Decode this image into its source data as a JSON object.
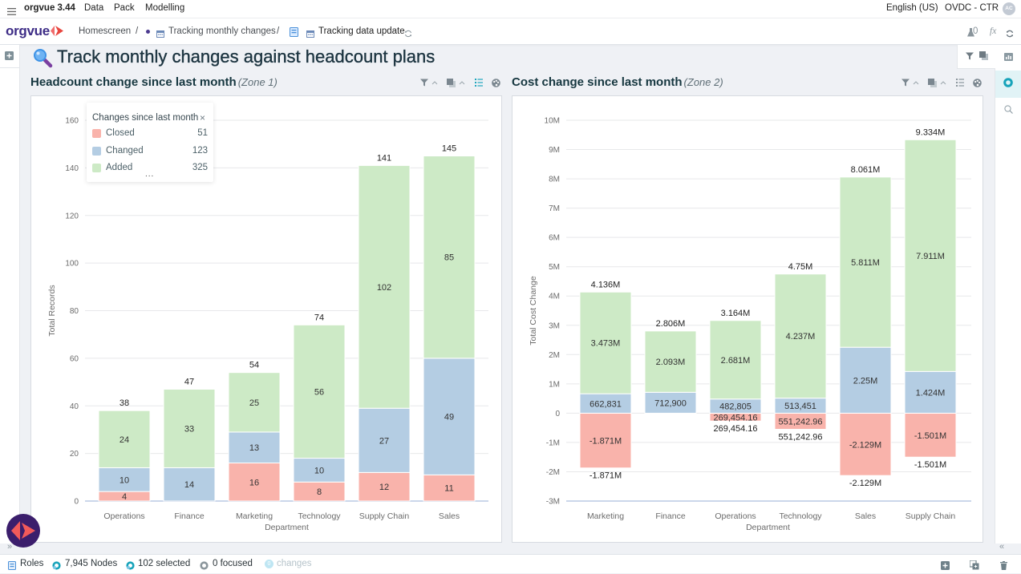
{
  "app": {
    "name": "orgvue 3.44",
    "menu": [
      {
        "label": "Data"
      },
      {
        "label": "Pack"
      },
      {
        "label": "Modelling"
      }
    ],
    "language": "English (US)",
    "tenant": "OVDC - CTR",
    "avatar_initials": "AC"
  },
  "breadcrumb": {
    "logo_text": "orgvue",
    "separator": "/",
    "items": [
      {
        "label": "Homescreen"
      },
      {
        "label": "Tracking monthly changes",
        "icon": "calendar-icon"
      },
      {
        "label": "Tracking data update",
        "icon": "calendar-icon"
      }
    ]
  },
  "header_tools": {
    "experiments_count": "0",
    "formula_label": "fx"
  },
  "page": {
    "title": "Track monthly changes against headcount plans",
    "title_icon": "magnifier-icon"
  },
  "colors": {
    "closed": "#f9b3ab",
    "changed": "#b4cde3",
    "added": "#cdeac6",
    "accent": "#19a7bd",
    "brand": "#3d2c86"
  },
  "chart_data": [
    {
      "type": "bar",
      "stacked": true,
      "title": "Headcount change since last month",
      "zone": "(Zone 1)",
      "xlabel": "Department",
      "ylabel": "Total Records",
      "ylim": [
        0,
        160
      ],
      "yticks": [
        0,
        20,
        40,
        60,
        80,
        100,
        120,
        140,
        160
      ],
      "ytick_labels": [
        "0",
        "20",
        "40",
        "60",
        "80",
        "100",
        "120",
        "140",
        "160"
      ],
      "grid": true,
      "categories": [
        "Operations",
        "Finance",
        "Marketing",
        "Technology",
        "Supply Chain",
        "Sales"
      ],
      "series": [
        {
          "name": "Closed",
          "color": "#f9b3ab",
          "values": [
            4,
            0,
            16,
            8,
            12,
            11
          ],
          "labels": [
            "4",
            "",
            "16",
            "8",
            "12",
            "11"
          ]
        },
        {
          "name": "Changed",
          "color": "#b4cde3",
          "values": [
            10,
            14,
            13,
            10,
            27,
            49
          ],
          "labels": [
            "10",
            "14",
            "13",
            "10",
            "27",
            "49"
          ]
        },
        {
          "name": "Added",
          "color": "#cdeac6",
          "values": [
            24,
            33,
            25,
            56,
            102,
            85
          ],
          "labels": [
            "24",
            "33",
            "25",
            "56",
            "102",
            "85"
          ]
        }
      ],
      "totals": [
        38,
        47,
        54,
        74,
        141,
        145
      ],
      "total_labels": [
        "38",
        "47",
        "54",
        "74",
        "141",
        "145"
      ],
      "below_labels": [
        "",
        "",
        "",
        "",
        "",
        ""
      ],
      "legend": {
        "title": "Changes since last month",
        "position": "top-left",
        "close": "×",
        "more": "...",
        "items": [
          {
            "name": "Closed",
            "count": "51",
            "color": "#f9b3ab"
          },
          {
            "name": "Changed",
            "count": "123",
            "color": "#b4cde3"
          },
          {
            "name": "Added",
            "count": "325",
            "color": "#cdeac6"
          }
        ]
      }
    },
    {
      "type": "bar",
      "stacked": true,
      "title": "Cost change since last month",
      "zone": "(Zone 2)",
      "xlabel": "Department",
      "ylabel": "Total Cost Change",
      "ylim": [
        -3000000,
        10000000
      ],
      "yticks": [
        -3000000,
        -2000000,
        -1000000,
        0,
        1000000,
        2000000,
        3000000,
        4000000,
        5000000,
        6000000,
        7000000,
        8000000,
        9000000,
        10000000
      ],
      "ytick_labels": [
        "-3M",
        "-2M",
        "-1M",
        "0",
        "1M",
        "2M",
        "3M",
        "4M",
        "5M",
        "6M",
        "7M",
        "8M",
        "9M",
        "10M"
      ],
      "grid": true,
      "categories": [
        "Marketing",
        "Finance",
        "Operations",
        "Technology",
        "Sales",
        "Supply Chain"
      ],
      "series": [
        {
          "name": "Closed",
          "color": "#f9b3ab",
          "values": [
            -1871000,
            0,
            -269454.16,
            -551242.96,
            -2129000,
            -1501000
          ],
          "labels": [
            "-1.871M",
            "",
            "269,454.16",
            "551,242.96",
            "-2.129M",
            "-1.501M"
          ]
        },
        {
          "name": "Changed",
          "color": "#b4cde3",
          "values": [
            662831,
            712900,
            482805,
            513451,
            2250000,
            1424000
          ],
          "labels": [
            "662,831",
            "712,900",
            "482,805",
            "513,451",
            "2.25M",
            "1.424M"
          ]
        },
        {
          "name": "Added",
          "color": "#cdeac6",
          "values": [
            3473000,
            2093000,
            2681000,
            4237000,
            5811000,
            7911000
          ],
          "labels": [
            "3.473M",
            "2.093M",
            "2.681M",
            "4.237M",
            "5.811M",
            "7.911M"
          ]
        }
      ],
      "totals": [
        4136000,
        2806000,
        3164000,
        4750000,
        8061000,
        9334000
      ],
      "total_labels": [
        "4.136M",
        "2.806M",
        "3.164M",
        "4.75M",
        "8.061M",
        "9.334M"
      ],
      "below_labels": [
        "-1.871M",
        "",
        "269,454.16",
        "551,242.96",
        "-2.129M",
        "-1.501M"
      ]
    }
  ],
  "bottom_strip": {
    "expand_left": "»",
    "expand_right": "«"
  },
  "status_bar": {
    "roles": "Roles",
    "nodes": "7,945 Nodes",
    "selected": "102 selected",
    "focused": "0 focused",
    "changes_count": "0",
    "changes": "changes"
  }
}
